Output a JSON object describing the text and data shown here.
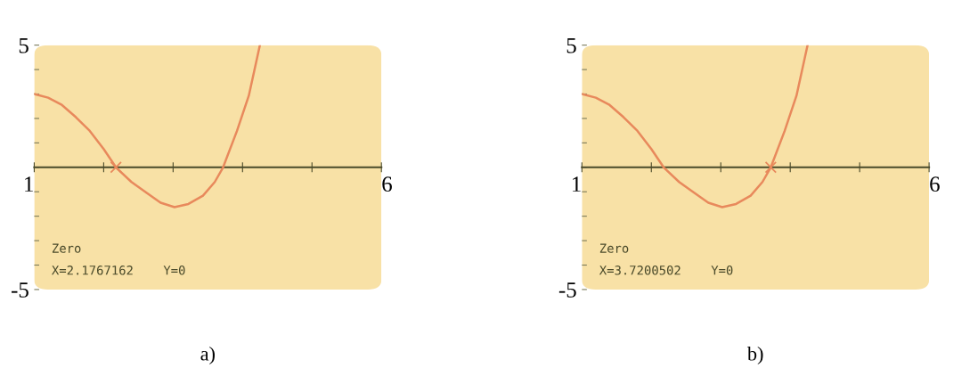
{
  "chart_data": [
    {
      "type": "line",
      "title": "a)",
      "xlim": [
        1,
        6
      ],
      "ylim": [
        -5,
        5
      ],
      "xticks": [
        1,
        {
          "value": 2,
          "label": null
        },
        {
          "value": 3,
          "label": null
        },
        {
          "value": 4,
          "label": null
        },
        {
          "value": 5,
          "label": null
        },
        6
      ],
      "yticks": [
        -5,
        {
          "value": -4,
          "label": null
        },
        {
          "value": -3,
          "label": null
        },
        {
          "value": -2,
          "label": null
        },
        {
          "value": -1,
          "label": null
        },
        {
          "value": 0,
          "label": null
        },
        {
          "value": 1,
          "label": null
        },
        {
          "value": 2,
          "label": null
        },
        {
          "value": 3,
          "label": null
        },
        {
          "value": 4,
          "label": null
        },
        5
      ],
      "grid": false,
      "legend": false,
      "series": [
        {
          "type": "line",
          "color": "#e8895c",
          "x": [
            1,
            1.2,
            1.39,
            1.6,
            1.8,
            2.0,
            2.177,
            2.4,
            2.62,
            2.82,
            3.02,
            3.22,
            3.43,
            3.6,
            3.72,
            3.92,
            4.09,
            4.25
          ],
          "values": [
            3.0,
            2.85,
            2.57,
            2.05,
            1.49,
            0.75,
            0,
            -0.6,
            -1.05,
            -1.45,
            -1.63,
            -1.5,
            -1.16,
            -0.6,
            0,
            1.49,
            2.93,
            5
          ]
        },
        {
          "type": "scatter",
          "color": "#e8895c",
          "marker": "cross",
          "x": [
            2.1767162
          ],
          "values": [
            0
          ]
        }
      ],
      "annotations": [
        "Zero",
        "X=2.1767162    Y=0"
      ]
    },
    {
      "type": "line",
      "title": "b)",
      "xlim": [
        1,
        6
      ],
      "ylim": [
        -5,
        5
      ],
      "xticks": [
        1,
        {
          "value": 2,
          "label": null
        },
        {
          "value": 3,
          "label": null
        },
        {
          "value": 4,
          "label": null
        },
        {
          "value": 5,
          "label": null
        },
        6
      ],
      "yticks": [
        -5,
        {
          "value": -4,
          "label": null
        },
        {
          "value": -3,
          "label": null
        },
        {
          "value": -2,
          "label": null
        },
        {
          "value": -1,
          "label": null
        },
        {
          "value": 0,
          "label": null
        },
        {
          "value": 1,
          "label": null
        },
        {
          "value": 2,
          "label": null
        },
        {
          "value": 3,
          "label": null
        },
        {
          "value": 4,
          "label": null
        },
        5
      ],
      "grid": false,
      "legend": false,
      "series": [
        {
          "type": "line",
          "color": "#e8895c",
          "x": [
            1,
            1.2,
            1.39,
            1.6,
            1.8,
            2.0,
            2.177,
            2.4,
            2.62,
            2.82,
            3.02,
            3.22,
            3.43,
            3.6,
            3.72,
            3.92,
            4.09,
            4.25
          ],
          "values": [
            3.0,
            2.85,
            2.57,
            2.05,
            1.49,
            0.75,
            0,
            -0.6,
            -1.05,
            -1.45,
            -1.63,
            -1.5,
            -1.16,
            -0.6,
            0,
            1.49,
            2.93,
            5
          ]
        },
        {
          "type": "scatter",
          "color": "#e8895c",
          "marker": "cross",
          "x": [
            3.7200502
          ],
          "values": [
            0
          ]
        }
      ],
      "annotations": [
        "Zero",
        "X=3.7200502    Y=0"
      ]
    }
  ]
}
